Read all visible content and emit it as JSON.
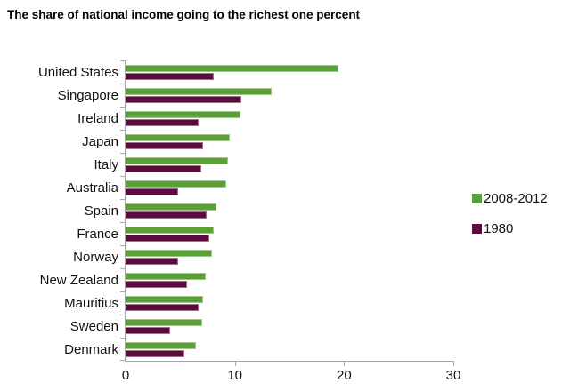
{
  "title": "The share of national income going to the richest one percent",
  "colors": {
    "series_2008_2012": "#5ba037",
    "series_1980": "#5b0b3d",
    "axis": "#a6a6a6",
    "text": "#111111",
    "background": "#ffffff"
  },
  "legend": {
    "position": "right",
    "items": [
      {
        "label": "2008-2012",
        "color": "#5ba037"
      },
      {
        "label": "1980",
        "color": "#5b0b3d"
      }
    ]
  },
  "chart_data": {
    "type": "bar",
    "orientation": "horizontal",
    "title": "The share of national income going to the richest one percent",
    "xlabel": "",
    "ylabel": "",
    "xlim": [
      0,
      30
    ],
    "x_ticks": [
      0,
      10,
      20,
      30
    ],
    "grid": false,
    "legend_position": "right",
    "categories": [
      "United States",
      "Singapore",
      "Ireland",
      "Japan",
      "Italy",
      "Australia",
      "Spain",
      "France",
      "Norway",
      "New Zealand",
      "Mauritius",
      "Sweden",
      "Denmark"
    ],
    "series": [
      {
        "name": "2008-2012",
        "color": "#5ba037",
        "values": [
          19.5,
          13.4,
          10.5,
          9.5,
          9.4,
          9.2,
          8.3,
          8.1,
          7.9,
          7.3,
          7.1,
          7.0,
          6.4
        ]
      },
      {
        "name": "1980",
        "color": "#5b0b3d",
        "values": [
          8.1,
          10.6,
          6.7,
          7.1,
          6.9,
          4.8,
          7.4,
          7.7,
          4.8,
          5.6,
          6.7,
          4.1,
          5.4
        ]
      }
    ]
  }
}
